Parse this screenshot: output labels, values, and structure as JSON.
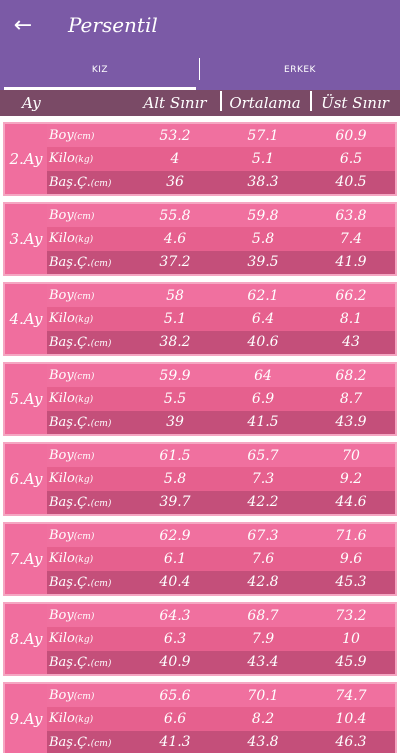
{
  "app": {
    "title": "Persentil"
  },
  "tabs": [
    {
      "label": "KIZ"
    },
    {
      "label": "ERKEK"
    }
  ],
  "header": {
    "ay": "Ay",
    "alt": "Alt Sınır",
    "ort": "Ortalama",
    "ust": "Üst Sınır"
  },
  "labels": {
    "boy": "Boy",
    "boy_unit": "(cm)",
    "kilo": "Kilo",
    "kilo_unit": "(kg)",
    "bas": "Baş.Ç.",
    "bas_unit": "(cm)"
  },
  "months": [
    {
      "name": "2.Ay",
      "boy": [
        "53.2",
        "57.1",
        "60.9"
      ],
      "kilo": [
        "4",
        "5.1",
        "6.5"
      ],
      "bas": [
        "36",
        "38.3",
        "40.5"
      ]
    },
    {
      "name": "3.Ay",
      "boy": [
        "55.8",
        "59.8",
        "63.8"
      ],
      "kilo": [
        "4.6",
        "5.8",
        "7.4"
      ],
      "bas": [
        "37.2",
        "39.5",
        "41.9"
      ]
    },
    {
      "name": "4.Ay",
      "boy": [
        "58",
        "62.1",
        "66.2"
      ],
      "kilo": [
        "5.1",
        "6.4",
        "8.1"
      ],
      "bas": [
        "38.2",
        "40.6",
        "43"
      ]
    },
    {
      "name": "5.Ay",
      "boy": [
        "59.9",
        "64",
        "68.2"
      ],
      "kilo": [
        "5.5",
        "6.9",
        "8.7"
      ],
      "bas": [
        "39",
        "41.5",
        "43.9"
      ]
    },
    {
      "name": "6.Ay",
      "boy": [
        "61.5",
        "65.7",
        "70"
      ],
      "kilo": [
        "5.8",
        "7.3",
        "9.2"
      ],
      "bas": [
        "39.7",
        "42.2",
        "44.6"
      ]
    },
    {
      "name": "7.Ay",
      "boy": [
        "62.9",
        "67.3",
        "71.6"
      ],
      "kilo": [
        "6.1",
        "7.6",
        "9.6"
      ],
      "bas": [
        "40.4",
        "42.8",
        "45.3"
      ]
    },
    {
      "name": "8.Ay",
      "boy": [
        "64.3",
        "68.7",
        "73.2"
      ],
      "kilo": [
        "6.3",
        "7.9",
        "10"
      ],
      "bas": [
        "40.9",
        "43.4",
        "45.9"
      ]
    },
    {
      "name": "9.Ay",
      "boy": [
        "65.6",
        "70.1",
        "74.7"
      ],
      "kilo": [
        "6.6",
        "8.2",
        "10.4"
      ],
      "bas": [
        "41.3",
        "43.8",
        "46.3"
      ]
    }
  ]
}
